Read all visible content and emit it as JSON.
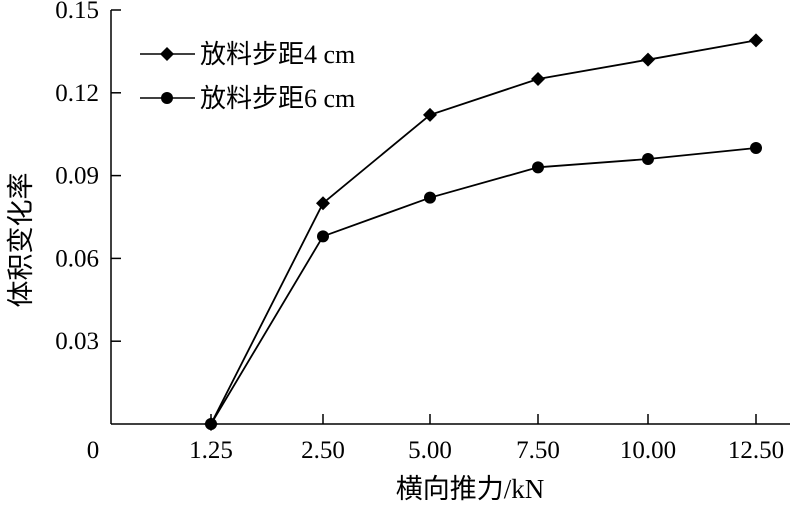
{
  "chart_data": {
    "type": "line",
    "categories": [
      "1.25",
      "2.50",
      "5.00",
      "7.50",
      "10.00",
      "12.50"
    ],
    "origin_label": "0",
    "xlabel": "横向推力/kN",
    "ylabel": "体积变化率",
    "ylim": [
      0,
      0.15
    ],
    "yticks": [
      "0.03",
      "0.06",
      "0.09",
      "0.12",
      "0.15"
    ],
    "grid": false,
    "legend_position": "top-left",
    "series": [
      {
        "name": "放料步距4 cm",
        "marker": "diamond",
        "color": "#000000",
        "values": [
          0.0,
          0.08,
          0.112,
          0.125,
          0.132,
          0.139
        ]
      },
      {
        "name": "放料步距6 cm",
        "marker": "circle",
        "color": "#000000",
        "values": [
          0.0,
          0.068,
          0.082,
          0.093,
          0.096,
          0.1
        ]
      }
    ]
  }
}
